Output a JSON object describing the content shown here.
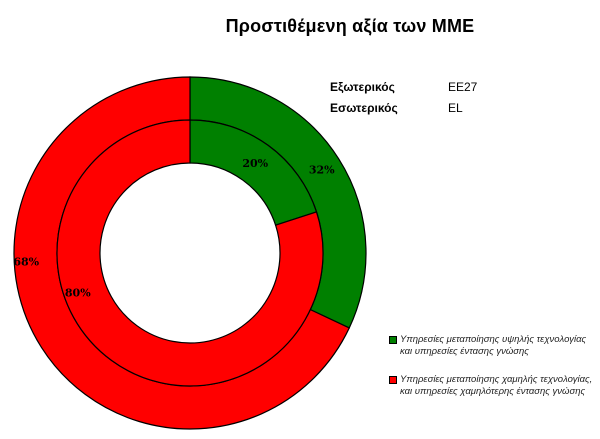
{
  "title": "Προστιθέμενη αξία των ΜΜΕ",
  "rings_key": [
    {
      "label": "Εξωτερικός",
      "code": "EE27"
    },
    {
      "label": "Εσωτερικός",
      "code": "EL"
    }
  ],
  "chart_data": {
    "type": "pie",
    "subtype": "doughnut",
    "title": "Προστιθέμενη αξία των ΜΜΕ",
    "categories": [
      "Υπηρεσίες μεταποίησης υψηλής τεχνολογίας και υπηρεσίες έντασης γνώσης",
      "Υπηρεσίες μεταποίησης  χαμηλής τεχνολογίας, και υπηρεσίες χαμηλότερης έντασης γνώσης"
    ],
    "colors": [
      "#008000",
      "#ff0000"
    ],
    "series": [
      {
        "name": "EE27",
        "ring": "outer",
        "values": [
          32,
          68
        ],
        "labels": [
          "32%",
          "68%"
        ]
      },
      {
        "name": "EL",
        "ring": "inner",
        "values": [
          20,
          80
        ],
        "labels": [
          "20%",
          "80%"
        ]
      }
    ],
    "legend_position": "bottom-right"
  }
}
